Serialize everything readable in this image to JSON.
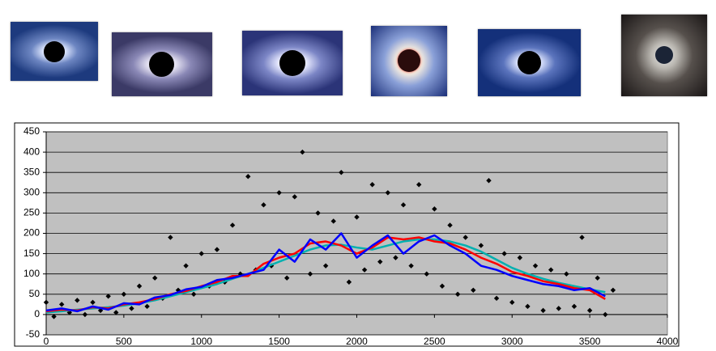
{
  "chart_data": {
    "type": "scatter",
    "xlim": [
      0,
      4000
    ],
    "xticks": [
      0,
      500,
      1000,
      1500,
      2000,
      2500,
      3000,
      3500,
      4000
    ],
    "ylim": [
      -50,
      450
    ],
    "yticks": [
      -50,
      0,
      50,
      100,
      150,
      200,
      250,
      300,
      350,
      400,
      450
    ],
    "grid": true,
    "background": "#c0c0c0",
    "series": [
      {
        "type": "scatter",
        "color": "#000000",
        "x": [
          0,
          50,
          100,
          150,
          200,
          250,
          300,
          350,
          400,
          450,
          500,
          550,
          600,
          650,
          700,
          750,
          800,
          850,
          900,
          950,
          1000,
          1050,
          1100,
          1150,
          1200,
          1250,
          1300,
          1350,
          1400,
          1450,
          1500,
          1550,
          1600,
          1650,
          1700,
          1750,
          1800,
          1850,
          1900,
          1950,
          2000,
          2050,
          2100,
          2150,
          2200,
          2250,
          2300,
          2350,
          2400,
          2450,
          2500,
          2550,
          2600,
          2650,
          2700,
          2750,
          2800,
          2850,
          2900,
          2950,
          3000,
          3050,
          3100,
          3150,
          3200,
          3250,
          3300,
          3350,
          3400,
          3450,
          3500,
          3550,
          3600,
          3650
        ],
        "values": [
          30,
          -5,
          25,
          5,
          35,
          0,
          30,
          10,
          45,
          5,
          50,
          15,
          70,
          20,
          90,
          40,
          190,
          60,
          120,
          50,
          150,
          70,
          160,
          80,
          220,
          100,
          340,
          110,
          270,
          120,
          300,
          90,
          290,
          400,
          100,
          250,
          120,
          230,
          350,
          80,
          240,
          110,
          320,
          130,
          300,
          140,
          270,
          120,
          320,
          100,
          260,
          70,
          220,
          50,
          190,
          60,
          170,
          330,
          40,
          150,
          30,
          140,
          20,
          120,
          10,
          110,
          15,
          100,
          20,
          190,
          10,
          90,
          0,
          60
        ]
      },
      {
        "type": "line",
        "color": "#00b0b0",
        "x": [
          0,
          100,
          200,
          300,
          400,
          500,
          600,
          700,
          800,
          900,
          1000,
          1100,
          1200,
          1300,
          1400,
          1500,
          1600,
          1700,
          1800,
          1900,
          2000,
          2100,
          2200,
          2300,
          2400,
          2500,
          2600,
          2700,
          2800,
          2900,
          3000,
          3100,
          3200,
          3300,
          3400,
          3500,
          3600
        ],
        "values": [
          5,
          8,
          12,
          15,
          18,
          22,
          28,
          35,
          45,
          55,
          65,
          75,
          88,
          100,
          115,
          130,
          145,
          160,
          170,
          172,
          165,
          160,
          170,
          180,
          185,
          185,
          180,
          170,
          155,
          135,
          115,
          100,
          88,
          78,
          70,
          62,
          55
        ]
      },
      {
        "type": "line",
        "color": "#ff0000",
        "x": [
          0,
          100,
          200,
          300,
          400,
          500,
          600,
          700,
          800,
          900,
          1000,
          1100,
          1200,
          1300,
          1400,
          1500,
          1600,
          1700,
          1800,
          1900,
          2000,
          2100,
          2200,
          2300,
          2400,
          2500,
          2600,
          2700,
          2800,
          2900,
          3000,
          3100,
          3200,
          3300,
          3400,
          3500,
          3600
        ],
        "values": [
          8,
          12,
          10,
          18,
          15,
          25,
          30,
          38,
          50,
          58,
          70,
          80,
          95,
          95,
          125,
          140,
          150,
          175,
          180,
          170,
          150,
          165,
          190,
          185,
          190,
          180,
          175,
          160,
          140,
          125,
          105,
          95,
          82,
          75,
          65,
          60,
          38
        ]
      },
      {
        "type": "line",
        "color": "#0000ff",
        "x": [
          0,
          100,
          200,
          300,
          400,
          500,
          600,
          700,
          800,
          900,
          1000,
          1100,
          1200,
          1300,
          1400,
          1500,
          1600,
          1700,
          1800,
          1900,
          2000,
          2100,
          2200,
          2300,
          2400,
          2500,
          2600,
          2700,
          2800,
          2900,
          3000,
          3100,
          3200,
          3300,
          3400,
          3500,
          3600
        ],
        "values": [
          10,
          15,
          8,
          20,
          12,
          28,
          25,
          42,
          48,
          62,
          68,
          85,
          90,
          100,
          110,
          160,
          130,
          185,
          160,
          200,
          140,
          170,
          195,
          150,
          180,
          195,
          170,
          150,
          120,
          110,
          95,
          85,
          75,
          70,
          60,
          65,
          45
        ]
      }
    ]
  }
}
